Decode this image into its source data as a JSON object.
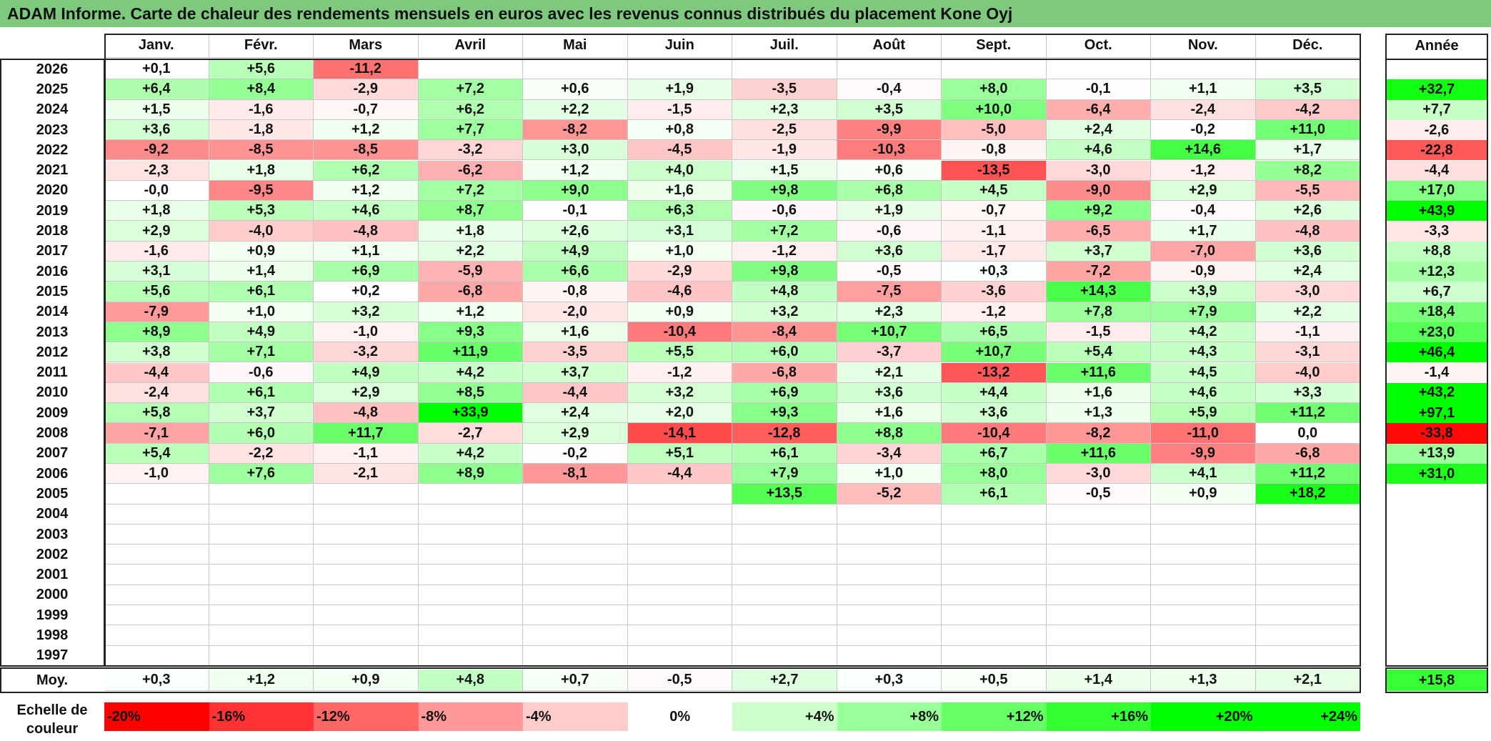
{
  "title": "ADAM Informe. Carte de chaleur des rendements mensuels en euros avec les revenus connus distribués du placement Kone Oyj",
  "months": [
    "Janv.",
    "Févr.",
    "Mars",
    "Avril",
    "Mai",
    "Juin",
    "Juil.",
    "Août",
    "Sept.",
    "Oct.",
    "Nov.",
    "Déc."
  ],
  "year_header": "Année",
  "average_label": "Moy.",
  "scale_label": "Echelle de couleur",
  "color_scale": [
    "-20%",
    "-16%",
    "-12%",
    "-8%",
    "-4%",
    "0%",
    "+4%",
    "+8%",
    "+12%",
    "+16%",
    "+20%",
    "+24%"
  ],
  "colors": {
    "title_bg": "#7fc97f",
    "negative": "#ff0000",
    "neutral": "#ffffff",
    "positive": "#00ff00"
  },
  "chart_data": {
    "type": "heatmap",
    "title": "ADAM Informe. Carte de chaleur des rendements mensuels en euros avec les revenus connus distribués du placement Kone Oyj",
    "x_categories": [
      "Janv.",
      "Févr.",
      "Mars",
      "Avril",
      "Mai",
      "Juin",
      "Juil.",
      "Août",
      "Sept.",
      "Oct.",
      "Nov.",
      "Déc."
    ],
    "rows": [
      {
        "year": "2026",
        "months": [
          "+0,1",
          "+5,6",
          "-11,2",
          "",
          "",
          "",
          "",
          "",
          "",
          "",
          "",
          ""
        ],
        "annual": ""
      },
      {
        "year": "2025",
        "months": [
          "+6,4",
          "+8,4",
          "-2,9",
          "+7,2",
          "+0,6",
          "+1,9",
          "-3,5",
          "-0,4",
          "+8,0",
          "-0,1",
          "+1,1",
          "+3,5"
        ],
        "annual": "+32,7"
      },
      {
        "year": "2024",
        "months": [
          "+1,5",
          "-1,6",
          "-0,7",
          "+6,2",
          "+2,2",
          "-1,5",
          "+2,3",
          "+3,5",
          "+10,0",
          "-6,4",
          "-2,4",
          "-4,2"
        ],
        "annual": "+7,7"
      },
      {
        "year": "2023",
        "months": [
          "+3,6",
          "-1,8",
          "+1,2",
          "+7,7",
          "-8,2",
          "+0,8",
          "-2,5",
          "-9,9",
          "-5,0",
          "+2,4",
          "-0,2",
          "+11,0"
        ],
        "annual": "-2,6"
      },
      {
        "year": "2022",
        "months": [
          "-9,2",
          "-8,5",
          "-8,5",
          "-3,2",
          "+3,0",
          "-4,5",
          "-1,9",
          "-10,3",
          "-0,8",
          "+4,6",
          "+14,6",
          "+1,7"
        ],
        "annual": "-22,8"
      },
      {
        "year": "2021",
        "months": [
          "-2,3",
          "+1,8",
          "+6,2",
          "-6,2",
          "+1,2",
          "+4,0",
          "+1,5",
          "+0,6",
          "-13,5",
          "-3,0",
          "-1,2",
          "+8,2"
        ],
        "annual": "-4,4"
      },
      {
        "year": "2020",
        "months": [
          "-0,0",
          "-9,5",
          "+1,2",
          "+7,2",
          "+9,0",
          "+1,6",
          "+9,8",
          "+6,8",
          "+4,5",
          "-9,0",
          "+2,9",
          "-5,5"
        ],
        "annual": "+17,0"
      },
      {
        "year": "2019",
        "months": [
          "+1,8",
          "+5,3",
          "+4,6",
          "+8,7",
          "-0,1",
          "+6,3",
          "-0,6",
          "+1,9",
          "-0,7",
          "+9,2",
          "-0,4",
          "+2,6"
        ],
        "annual": "+43,9"
      },
      {
        "year": "2018",
        "months": [
          "+2,9",
          "-4,0",
          "-4,8",
          "+1,8",
          "+2,6",
          "+3,1",
          "+7,2",
          "-0,6",
          "-1,1",
          "-6,5",
          "+1,7",
          "-4,8"
        ],
        "annual": "-3,3"
      },
      {
        "year": "2017",
        "months": [
          "-1,6",
          "+0,9",
          "+1,1",
          "+2,2",
          "+4,9",
          "+1,0",
          "-1,2",
          "+3,6",
          "-1,7",
          "+3,7",
          "-7,0",
          "+3,6"
        ],
        "annual": "+8,8"
      },
      {
        "year": "2016",
        "months": [
          "+3,1",
          "+1,4",
          "+6,9",
          "-5,9",
          "+6,6",
          "-2,9",
          "+9,8",
          "-0,5",
          "+0,3",
          "-7,2",
          "-0,9",
          "+2,4"
        ],
        "annual": "+12,3"
      },
      {
        "year": "2015",
        "months": [
          "+5,6",
          "+6,1",
          "+0,2",
          "-6,8",
          "-0,8",
          "-4,6",
          "+4,8",
          "-7,5",
          "-3,6",
          "+14,3",
          "+3,9",
          "-3,0"
        ],
        "annual": "+6,7"
      },
      {
        "year": "2014",
        "months": [
          "-7,9",
          "+1,0",
          "+3,2",
          "+1,2",
          "-2,0",
          "+0,9",
          "+3,2",
          "+2,3",
          "-1,2",
          "+7,8",
          "+7,9",
          "+2,2"
        ],
        "annual": "+18,4"
      },
      {
        "year": "2013",
        "months": [
          "+8,9",
          "+4,9",
          "-1,0",
          "+9,3",
          "+1,6",
          "-10,4",
          "-8,4",
          "+10,7",
          "+6,5",
          "-1,5",
          "+4,2",
          "-1,1"
        ],
        "annual": "+23,0"
      },
      {
        "year": "2012",
        "months": [
          "+3,8",
          "+7,1",
          "-3,2",
          "+11,9",
          "-3,5",
          "+5,5",
          "+6,0",
          "-3,7",
          "+10,7",
          "+5,4",
          "+4,3",
          "-3,1"
        ],
        "annual": "+46,4"
      },
      {
        "year": "2011",
        "months": [
          "-4,4",
          "-0,6",
          "+4,9",
          "+4,2",
          "+3,7",
          "-1,2",
          "-6,8",
          "+2,1",
          "-13,2",
          "+11,6",
          "+4,5",
          "-4,0"
        ],
        "annual": "-1,4"
      },
      {
        "year": "2010",
        "months": [
          "-2,4",
          "+6,1",
          "+2,9",
          "+8,5",
          "-4,4",
          "+3,2",
          "+6,9",
          "+3,6",
          "+4,4",
          "+1,6",
          "+4,6",
          "+3,3"
        ],
        "annual": "+43,2"
      },
      {
        "year": "2009",
        "months": [
          "+5,8",
          "+3,7",
          "-4,8",
          "+33,9",
          "+2,4",
          "+2,0",
          "+9,3",
          "+1,6",
          "+3,6",
          "+1,3",
          "+5,9",
          "+11,2"
        ],
        "annual": "+97,1"
      },
      {
        "year": "2008",
        "months": [
          "-7,1",
          "+6,0",
          "+11,7",
          "-2,7",
          "+2,9",
          "-14,1",
          "-12,8",
          "+8,8",
          "-10,4",
          "-8,2",
          "-11,0",
          "0,0"
        ],
        "annual": "-33,8"
      },
      {
        "year": "2007",
        "months": [
          "+5,4",
          "-2,2",
          "-1,1",
          "+4,2",
          "-0,2",
          "+5,1",
          "+6,1",
          "-3,4",
          "+6,7",
          "+11,6",
          "-9,9",
          "-6,8"
        ],
        "annual": "+13,9"
      },
      {
        "year": "2006",
        "months": [
          "-1,0",
          "+7,6",
          "-2,1",
          "+8,9",
          "-8,1",
          "-4,4",
          "+7,9",
          "+1,0",
          "+8,0",
          "-3,0",
          "+4,1",
          "+11,2"
        ],
        "annual": "+31,0"
      },
      {
        "year": "2005",
        "months": [
          "",
          "",
          "",
          "",
          "",
          "",
          "+13,5",
          "-5,2",
          "+6,1",
          "-0,5",
          "+0,9",
          "+18,2"
        ],
        "annual": ""
      },
      {
        "year": "2004",
        "months": [
          "",
          "",
          "",
          "",
          "",
          "",
          "",
          "",
          "",
          "",
          "",
          ""
        ],
        "annual": ""
      },
      {
        "year": "2003",
        "months": [
          "",
          "",
          "",
          "",
          "",
          "",
          "",
          "",
          "",
          "",
          "",
          ""
        ],
        "annual": ""
      },
      {
        "year": "2002",
        "months": [
          "",
          "",
          "",
          "",
          "",
          "",
          "",
          "",
          "",
          "",
          "",
          ""
        ],
        "annual": ""
      },
      {
        "year": "2001",
        "months": [
          "",
          "",
          "",
          "",
          "",
          "",
          "",
          "",
          "",
          "",
          "",
          ""
        ],
        "annual": ""
      },
      {
        "year": "2000",
        "months": [
          "",
          "",
          "",
          "",
          "",
          "",
          "",
          "",
          "",
          "",
          "",
          ""
        ],
        "annual": ""
      },
      {
        "year": "1999",
        "months": [
          "",
          "",
          "",
          "",
          "",
          "",
          "",
          "",
          "",
          "",
          "",
          ""
        ],
        "annual": ""
      },
      {
        "year": "1998",
        "months": [
          "",
          "",
          "",
          "",
          "",
          "",
          "",
          "",
          "",
          "",
          "",
          ""
        ],
        "annual": ""
      },
      {
        "year": "1997",
        "months": [
          "",
          "",
          "",
          "",
          "",
          "",
          "",
          "",
          "",
          "",
          "",
          ""
        ],
        "annual": ""
      }
    ],
    "average": {
      "months": [
        "+0,3",
        "+1,2",
        "+0,9",
        "+4,8",
        "+0,7",
        "-0,5",
        "+2,7",
        "+0,3",
        "+0,5",
        "+1,4",
        "+1,3",
        "+2,1"
      ],
      "annual": "+15,8"
    },
    "color_scale_range": [
      -20,
      24
    ]
  }
}
